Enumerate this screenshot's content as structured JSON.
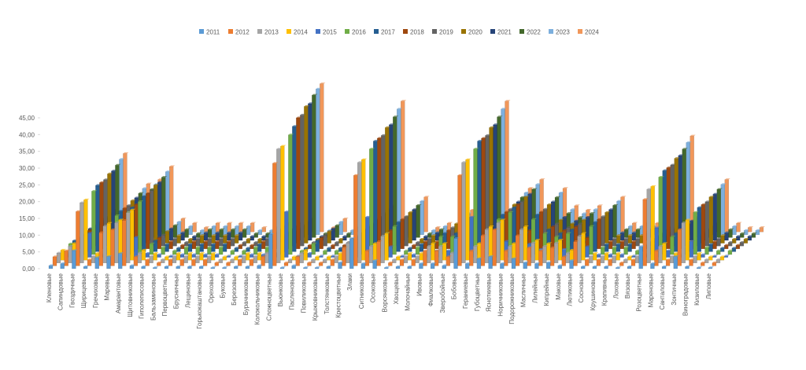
{
  "chart_data": {
    "type": "bar3d",
    "categories": [
      "Кленовые",
      "Сапиндовые",
      "Гвоздичные",
      "Щирицевые",
      "Гречиховые",
      "Маревые",
      "Амарантовые",
      "Щитовниковые",
      "Гиполеписовые",
      "Бальзаминовые",
      "Первоцветные",
      "Брусничные",
      "Лещиновые",
      "Горькокаштановые",
      "Ореховые",
      "Буковые",
      "Березовые",
      "Бурачниковые",
      "Колокольчиковые",
      "Сложноцветные",
      "Вьюнковые",
      "Пасленовые",
      "Повиликовые",
      "Крыжовниковые",
      "Толстянковые",
      "Крестоцветные",
      "Злаки",
      "Ситниковые",
      "Осоковые",
      "Ворсянковые",
      "Хвощевые",
      "Молочайные",
      "Ивовые",
      "Фиалковые",
      "Зверобойные",
      "Бобовые",
      "Гераниевые",
      "Губоцветные",
      "Ясноткиевые",
      "Норичниковые",
      "Подорожниковые",
      "Масличные",
      "Лилейные",
      "Кипрейные",
      "Маковые",
      "Лютиковые",
      "Сосновые",
      "Крушиновые",
      "Крапивные",
      "Лоховые",
      "Вязовые",
      "Розоцветные",
      "Мареновые",
      "Санталовые",
      "Зонтичные",
      "Виноградовые",
      "Кизиловые",
      "Липовые"
    ],
    "series": [
      {
        "name": "2011",
        "color": "#5b9bd5",
        "values": [
          0.9,
          1.5,
          5.4,
          0.6,
          3.3,
          3.6,
          4.5,
          0.9,
          0.6,
          0.3,
          0.6,
          0.6,
          0.6,
          0.6,
          0.3,
          0.3,
          0.6,
          0.6,
          0.9,
          10.2,
          0.3,
          0.9,
          0.3,
          0.3,
          0.6,
          1.8,
          9,
          1.5,
          2.4,
          0.3,
          0.6,
          0.6,
          1.5,
          1.5,
          0.9,
          9,
          1.5,
          3,
          3.6,
          1.5,
          3,
          1.8,
          1.5,
          1.8,
          0.9,
          2.4,
          0.6,
          0.6,
          0.6,
          0.3,
          0.6,
          6.6,
          1.5,
          0.6,
          3.6,
          0.6,
          0.3,
          0.3
        ]
      },
      {
        "name": "2012",
        "color": "#ed7d31",
        "values": [
          2.7,
          4.5,
          16.2,
          1.8,
          9.9,
          10.8,
          13.5,
          2.7,
          1.8,
          0.9,
          1.8,
          1.8,
          1.8,
          1.8,
          0.9,
          0.9,
          1.8,
          1.8,
          2.7,
          30.6,
          0.9,
          2.7,
          0.9,
          0.9,
          1.8,
          5.4,
          27,
          4.5,
          7.2,
          0.9,
          1.8,
          1.8,
          4.5,
          4.5,
          2.7,
          27,
          4.5,
          9,
          10.8,
          4.5,
          9,
          5.4,
          4.5,
          5.4,
          2.7,
          7.2,
          1.8,
          1.8,
          1.8,
          0.9,
          1.8,
          19.8,
          4.5,
          1.8,
          10.8,
          1.8,
          0.9,
          0.9
        ]
      },
      {
        "name": "2013",
        "color": "#a5a5a5",
        "values": [
          3,
          5,
          18,
          2,
          11,
          12,
          15,
          3,
          2,
          1,
          2,
          2,
          2,
          2,
          1,
          1,
          2,
          2,
          3,
          34,
          1,
          3,
          1,
          1,
          2,
          6,
          30,
          5,
          8,
          1,
          2,
          2,
          5,
          5,
          3,
          30,
          5,
          10,
          12,
          5,
          10,
          6,
          5,
          6,
          3,
          8,
          2,
          2,
          2,
          1,
          2,
          22,
          5,
          2,
          12,
          2,
          1,
          1
        ]
      },
      {
        "name": "2014",
        "color": "#ffc000",
        "values": [
          3,
          5,
          18,
          2,
          11,
          12,
          15,
          3,
          2,
          1,
          2,
          2,
          2,
          2,
          1,
          1,
          2,
          2,
          3,
          34,
          1,
          3,
          1,
          1,
          2,
          6,
          30,
          5,
          8,
          1,
          2,
          2,
          5,
          5,
          3,
          30,
          5,
          10,
          12,
          5,
          10,
          6,
          5,
          6,
          3,
          8,
          2,
          2,
          2,
          1,
          2,
          22,
          5,
          2,
          12,
          2,
          1,
          1
        ]
      },
      {
        "name": "2015",
        "color": "#4472c4",
        "values": [
          1.2,
          2,
          7.2,
          0.8,
          4.4,
          4.8,
          6,
          1.2,
          0.8,
          0.4,
          0.8,
          0.8,
          0.8,
          0.8,
          0.4,
          0.4,
          0.8,
          0.8,
          1.2,
          13.6,
          0.4,
          1.2,
          0.4,
          0.4,
          0.8,
          2.4,
          12,
          2,
          3.2,
          0.4,
          0.8,
          0.8,
          2,
          2,
          1.2,
          12,
          2,
          4,
          4.8,
          2,
          4,
          2.4,
          2,
          2.4,
          1.2,
          3.2,
          0.8,
          0.8,
          0.8,
          0.4,
          0.8,
          8.8,
          2,
          0.8,
          4.8,
          0.8,
          0.4,
          0.4
        ]
      },
      {
        "name": "2016",
        "color": "#70ad47",
        "values": [
          3.2,
          5.3,
          18.9,
          2.1,
          11.6,
          12.6,
          15.8,
          3.2,
          2.1,
          1.1,
          2.1,
          2.1,
          2.1,
          2.1,
          1.1,
          1.1,
          2.1,
          2.1,
          3.2,
          35.7,
          1.1,
          3.2,
          1.1,
          1.1,
          2.1,
          6.3,
          31.5,
          5.3,
          8.4,
          1.1,
          2.1,
          2.1,
          5.3,
          5.3,
          3.2,
          31.5,
          5.3,
          10.5,
          12.6,
          5.3,
          10.5,
          6.3,
          5.3,
          6.3,
          3.2,
          8.4,
          2.1,
          2.1,
          2.1,
          1.1,
          2.1,
          23.1,
          5.3,
          2.1,
          12.6,
          2.1,
          1.1,
          1.1
        ]
      },
      {
        "name": "2017",
        "color": "#255e91",
        "values": [
          3.3,
          5.5,
          19.8,
          2.2,
          12.1,
          13.2,
          16.5,
          3.3,
          2.2,
          1.1,
          2.2,
          2.2,
          2.2,
          2.2,
          1.1,
          1.1,
          2.2,
          2.2,
          3.3,
          37.4,
          1.1,
          3.3,
          1.1,
          1.1,
          2.2,
          6.6,
          33,
          5.5,
          8.8,
          1.1,
          2.2,
          2.2,
          5.5,
          5.5,
          3.3,
          33,
          5.5,
          11,
          13.2,
          5.5,
          11,
          6.6,
          5.5,
          6.6,
          3.3,
          8.8,
          2.2,
          2.2,
          2.2,
          1.1,
          2.2,
          24.2,
          5.5,
          2.2,
          13.2,
          2.2,
          1.1,
          1.1
        ]
      },
      {
        "name": "2018",
        "color": "#9e480e",
        "values": [
          3.3,
          5.5,
          19.8,
          2.2,
          12.1,
          13.2,
          16.5,
          3.3,
          2.2,
          1.1,
          2.2,
          2.2,
          2.2,
          2.2,
          1.1,
          1.1,
          2.2,
          2.2,
          3.3,
          39.1,
          1.1,
          3.3,
          1.1,
          1.1,
          2.2,
          6.6,
          33,
          5.5,
          8.8,
          1.1,
          2.2,
          2.2,
          5.5,
          5.5,
          3.3,
          33,
          5.5,
          11,
          13.2,
          5.5,
          11,
          6.6,
          5.5,
          6.6,
          3.3,
          8.8,
          2.2,
          2.2,
          2.2,
          1.1,
          2.2,
          24.2,
          5.5,
          2.2,
          13.2,
          2.2,
          1.1,
          1.1
        ]
      },
      {
        "name": "2019",
        "color": "#636363",
        "values": [
          3.3,
          5.5,
          19.8,
          2.2,
          12.1,
          13.2,
          16.5,
          3.3,
          2.2,
          1.1,
          2.2,
          2.2,
          2.2,
          2.2,
          1.1,
          1.1,
          2.2,
          2.2,
          3.3,
          39.1,
          1.1,
          3.3,
          1.1,
          1.1,
          2.2,
          6.6,
          33,
          5.5,
          8.8,
          1.1,
          2.2,
          2.2,
          5.5,
          5.5,
          3.3,
          33,
          5.5,
          11,
          13.2,
          5.5,
          11,
          6.6,
          5.5,
          6.6,
          3.3,
          8.8,
          2.2,
          2.2,
          2.2,
          1.1,
          2.2,
          24.2,
          5.5,
          2.2,
          13.2,
          2.2,
          1.1,
          1.1
        ]
      },
      {
        "name": "2020",
        "color": "#997300",
        "values": [
          3.5,
          5.8,
          20.7,
          2.3,
          12.7,
          13.8,
          17.3,
          3.5,
          2.3,
          1.2,
          2.3,
          2.3,
          2.3,
          2.3,
          1.2,
          1.2,
          2.3,
          2.3,
          3.5,
          40.8,
          1.2,
          3.5,
          1.2,
          1.2,
          2.3,
          6.9,
          34.5,
          5.8,
          9.2,
          1.2,
          2.3,
          2.3,
          5.8,
          5.8,
          3.5,
          34.5,
          5.8,
          11.5,
          13.8,
          5.8,
          11.5,
          6.9,
          5.8,
          6.9,
          3.5,
          9.2,
          2.3,
          2.3,
          2.3,
          1.2,
          2.3,
          25.3,
          5.8,
          2.3,
          13.8,
          2.3,
          1.2,
          1.2
        ]
      },
      {
        "name": "2021",
        "color": "#264478",
        "values": [
          3.5,
          5.8,
          20.7,
          2.3,
          12.7,
          13.8,
          17.3,
          3.5,
          2.3,
          1.2,
          2.3,
          2.3,
          2.3,
          2.3,
          1.2,
          1.2,
          2.3,
          2.3,
          3.5,
          40.8,
          1.2,
          3.5,
          1.2,
          1.2,
          2.3,
          6.9,
          34.5,
          5.8,
          9.2,
          1.2,
          2.3,
          2.3,
          5.8,
          5.8,
          3.5,
          34.5,
          5.8,
          11.5,
          13.8,
          5.8,
          11.5,
          6.9,
          5.8,
          6.9,
          3.5,
          9.2,
          2.3,
          2.3,
          2.3,
          1.2,
          2.3,
          25.3,
          5.8,
          2.3,
          13.8,
          2.3,
          1.2,
          1.2
        ]
      },
      {
        "name": "2022",
        "color": "#43682b",
        "values": [
          3.6,
          6,
          21.6,
          2.4,
          13.2,
          14.4,
          18,
          3.6,
          2.4,
          1.2,
          2.4,
          2.4,
          2.4,
          2.4,
          1.2,
          1.2,
          2.4,
          2.4,
          3.6,
          42.5,
          1.2,
          3.6,
          1.2,
          1.2,
          2.4,
          7.2,
          36,
          6,
          9.6,
          1.2,
          2.4,
          2.4,
          6,
          6,
          3.6,
          36,
          6,
          12,
          14.4,
          6,
          12,
          7.2,
          6,
          7.2,
          3.6,
          9.6,
          2.4,
          2.4,
          2.4,
          1.2,
          2.4,
          26.4,
          6,
          2.4,
          14.4,
          2.4,
          1.2,
          1.2
        ]
      },
      {
        "name": "2023",
        "color": "#7cafdd",
        "values": [
          3.8,
          6.3,
          22.5,
          2.5,
          13.8,
          15,
          18.8,
          3.8,
          2.5,
          1.3,
          2.5,
          2.5,
          2.5,
          2.5,
          1.3,
          1.3,
          2.5,
          2.5,
          3.8,
          43.5,
          1.3,
          3.8,
          1.3,
          1.3,
          2.5,
          7.5,
          37.5,
          6.3,
          10,
          1.3,
          2.5,
          2.5,
          6.3,
          6.3,
          3.8,
          37.5,
          6.3,
          12.5,
          15,
          6.3,
          12.5,
          7.5,
          6.3,
          7.5,
          3.8,
          10,
          2.5,
          2.5,
          2.5,
          1.3,
          2.5,
          27.5,
          6.3,
          2.5,
          15,
          2.5,
          1.3,
          1.3
        ]
      },
      {
        "name": "2024",
        "color": "#f1975a",
        "values": [
          3.9,
          6.5,
          23.4,
          2.6,
          14.3,
          15.6,
          19.5,
          3.9,
          2.6,
          1.3,
          2.6,
          2.6,
          2.6,
          2.6,
          1.3,
          1.3,
          2.6,
          2.6,
          3.9,
          44.2,
          1.3,
          3.9,
          1.3,
          1.3,
          2.6,
          7.8,
          39,
          6.5,
          10.4,
          1.3,
          2.6,
          2.6,
          6.5,
          6.5,
          3.9,
          39,
          6.5,
          13,
          15.6,
          6.5,
          13,
          7.8,
          6.5,
          7.8,
          3.9,
          10.4,
          2.6,
          2.6,
          2.6,
          1.3,
          2.6,
          28.6,
          6.5,
          2.6,
          15.6,
          2.6,
          1.3,
          1.3
        ]
      }
    ],
    "ylim": [
      0,
      45
    ],
    "yticks": [
      {
        "value": 0,
        "label": "0,00"
      },
      {
        "value": 5,
        "label": "5,00"
      },
      {
        "value": 10,
        "label": "10,00"
      },
      {
        "value": 15,
        "label": "15,00"
      },
      {
        "value": 20,
        "label": "20,00"
      },
      {
        "value": 25,
        "label": "25,00"
      },
      {
        "value": 30,
        "label": "30,00"
      },
      {
        "value": 35,
        "label": "35,00"
      },
      {
        "value": 40,
        "label": "40,00"
      },
      {
        "value": 45,
        "label": "45,00"
      }
    ],
    "legend": "top"
  }
}
